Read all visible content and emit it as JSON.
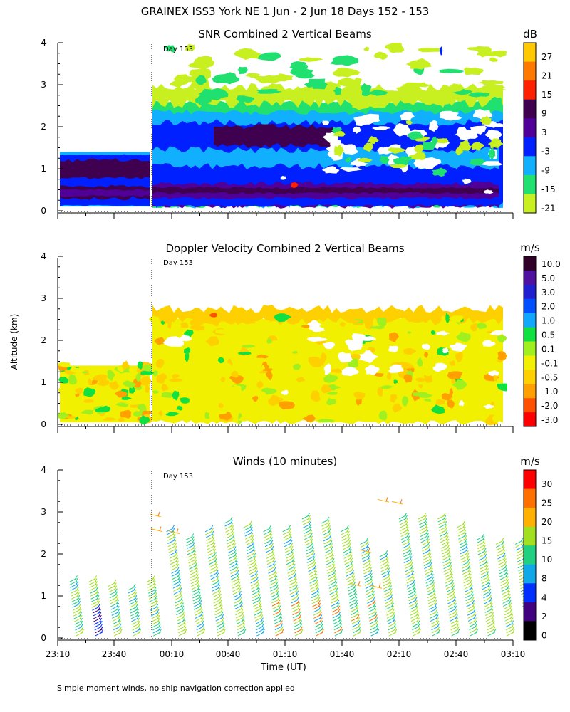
{
  "figure": {
    "title": "GRAINEX ISS3 York NE   1 Jun -  2 Jun 18 Days 152 - 153",
    "ylabel": "Altitude (km)",
    "xlabel": "Time (UT)",
    "footnote": "Simple moment winds, no ship navigation correction applied",
    "day_marker": "Day 153",
    "x_ticks": [
      "23:10",
      "23:40",
      "00:10",
      "00:40",
      "01:10",
      "01:40",
      "02:10",
      "02:40",
      "03:10"
    ],
    "y_ticks": [
      "0",
      "1",
      "2",
      "3",
      "4"
    ]
  },
  "panels": [
    {
      "title": "SNR Combined 2 Vertical Beams",
      "unit": "dB",
      "colorbar": {
        "labels": [
          "27",
          "21",
          "15",
          "9",
          "3",
          "-3",
          "-9",
          "-15",
          "-21"
        ],
        "colors": [
          "#ffc800",
          "#ff7800",
          "#ff2000",
          "#400050",
          "#500098",
          "#0020ff",
          "#10b0ff",
          "#20e070",
          "#c8f020"
        ]
      }
    },
    {
      "title": "Doppler Velocity Combined 2 Vertical Beams",
      "unit": "m/s",
      "colorbar": {
        "labels": [
          "10.0",
          "5.0",
          "3.0",
          "2.0",
          "1.0",
          "0.5",
          "0.1",
          "-0.1",
          "-0.5",
          "-1.0",
          "-2.0",
          "-3.0"
        ],
        "colors": [
          "#300028",
          "#5010a0",
          "#2020d0",
          "#0050ff",
          "#10a8ff",
          "#10e040",
          "#a0f020",
          "#f0f000",
          "#ffd000",
          "#ffa000",
          "#ff5000",
          "#ff0000"
        ]
      }
    },
    {
      "title": "Winds (10 minutes)",
      "unit": "m/s",
      "colorbar": {
        "labels": [
          "30",
          "25",
          "20",
          "15",
          "10",
          "8",
          "4",
          "2",
          "0"
        ],
        "colors": [
          "#ff0000",
          "#ff7000",
          "#ffb000",
          "#a0e020",
          "#20d080",
          "#10a8e8",
          "#0030ff",
          "#400080",
          "#000000"
        ]
      }
    }
  ],
  "chart_data": [
    {
      "type": "heatmap",
      "title": "SNR Combined 2 Vertical Beams",
      "x_range": [
        "23:10",
        "03:10"
      ],
      "ylim": [
        0,
        4
      ],
      "ylabel": "Altitude (km)",
      "unit": "dB",
      "levels": [
        -21,
        -15,
        -9,
        -3,
        3,
        9,
        15,
        21,
        27
      ],
      "notes": "Strong SNR (9 dB) below 1.4 km before 00:10; coverage rises to about 2.6 km after 00:10 with weak echoes to 4 km."
    },
    {
      "type": "heatmap",
      "title": "Doppler Velocity Combined 2 Vertical Beams",
      "x_range": [
        "23:10",
        "03:10"
      ],
      "ylim": [
        0,
        4
      ],
      "ylabel": "Altitude (km)",
      "unit": "m/s",
      "levels": [
        -3.0,
        -2.0,
        -1.0,
        -0.5,
        -0.1,
        0.1,
        0.5,
        1.0,
        2.0,
        3.0,
        5.0,
        10.0
      ],
      "notes": "Velocities mostly between -1.0 and 0.5 m/s."
    },
    {
      "type": "scatter",
      "title": "Winds (10 minutes)",
      "x": [
        "23:10",
        "23:20",
        "23:30",
        "23:40",
        "23:50",
        "00:00",
        "00:10",
        "00:20",
        "00:30",
        "00:40",
        "00:50",
        "01:00",
        "01:10",
        "01:20",
        "01:30",
        "01:40",
        "01:50",
        "02:00",
        "02:10",
        "02:20",
        "02:30",
        "02:40",
        "02:50",
        "03:00"
      ],
      "top_km": [
        1.4,
        1.4,
        1.3,
        1.2,
        1.4,
        2.6,
        2.4,
        2.6,
        2.8,
        2.7,
        2.6,
        2.6,
        2.9,
        2.8,
        2.6,
        2.3,
        2.0,
        2.9,
        2.9,
        2.9,
        2.7,
        2.4,
        2.3,
        2.3
      ],
      "ylim": [
        0,
        4
      ],
      "unit": "m/s",
      "speed_levels": [
        0,
        2,
        4,
        8,
        10,
        15,
        20,
        25,
        30
      ]
    }
  ]
}
